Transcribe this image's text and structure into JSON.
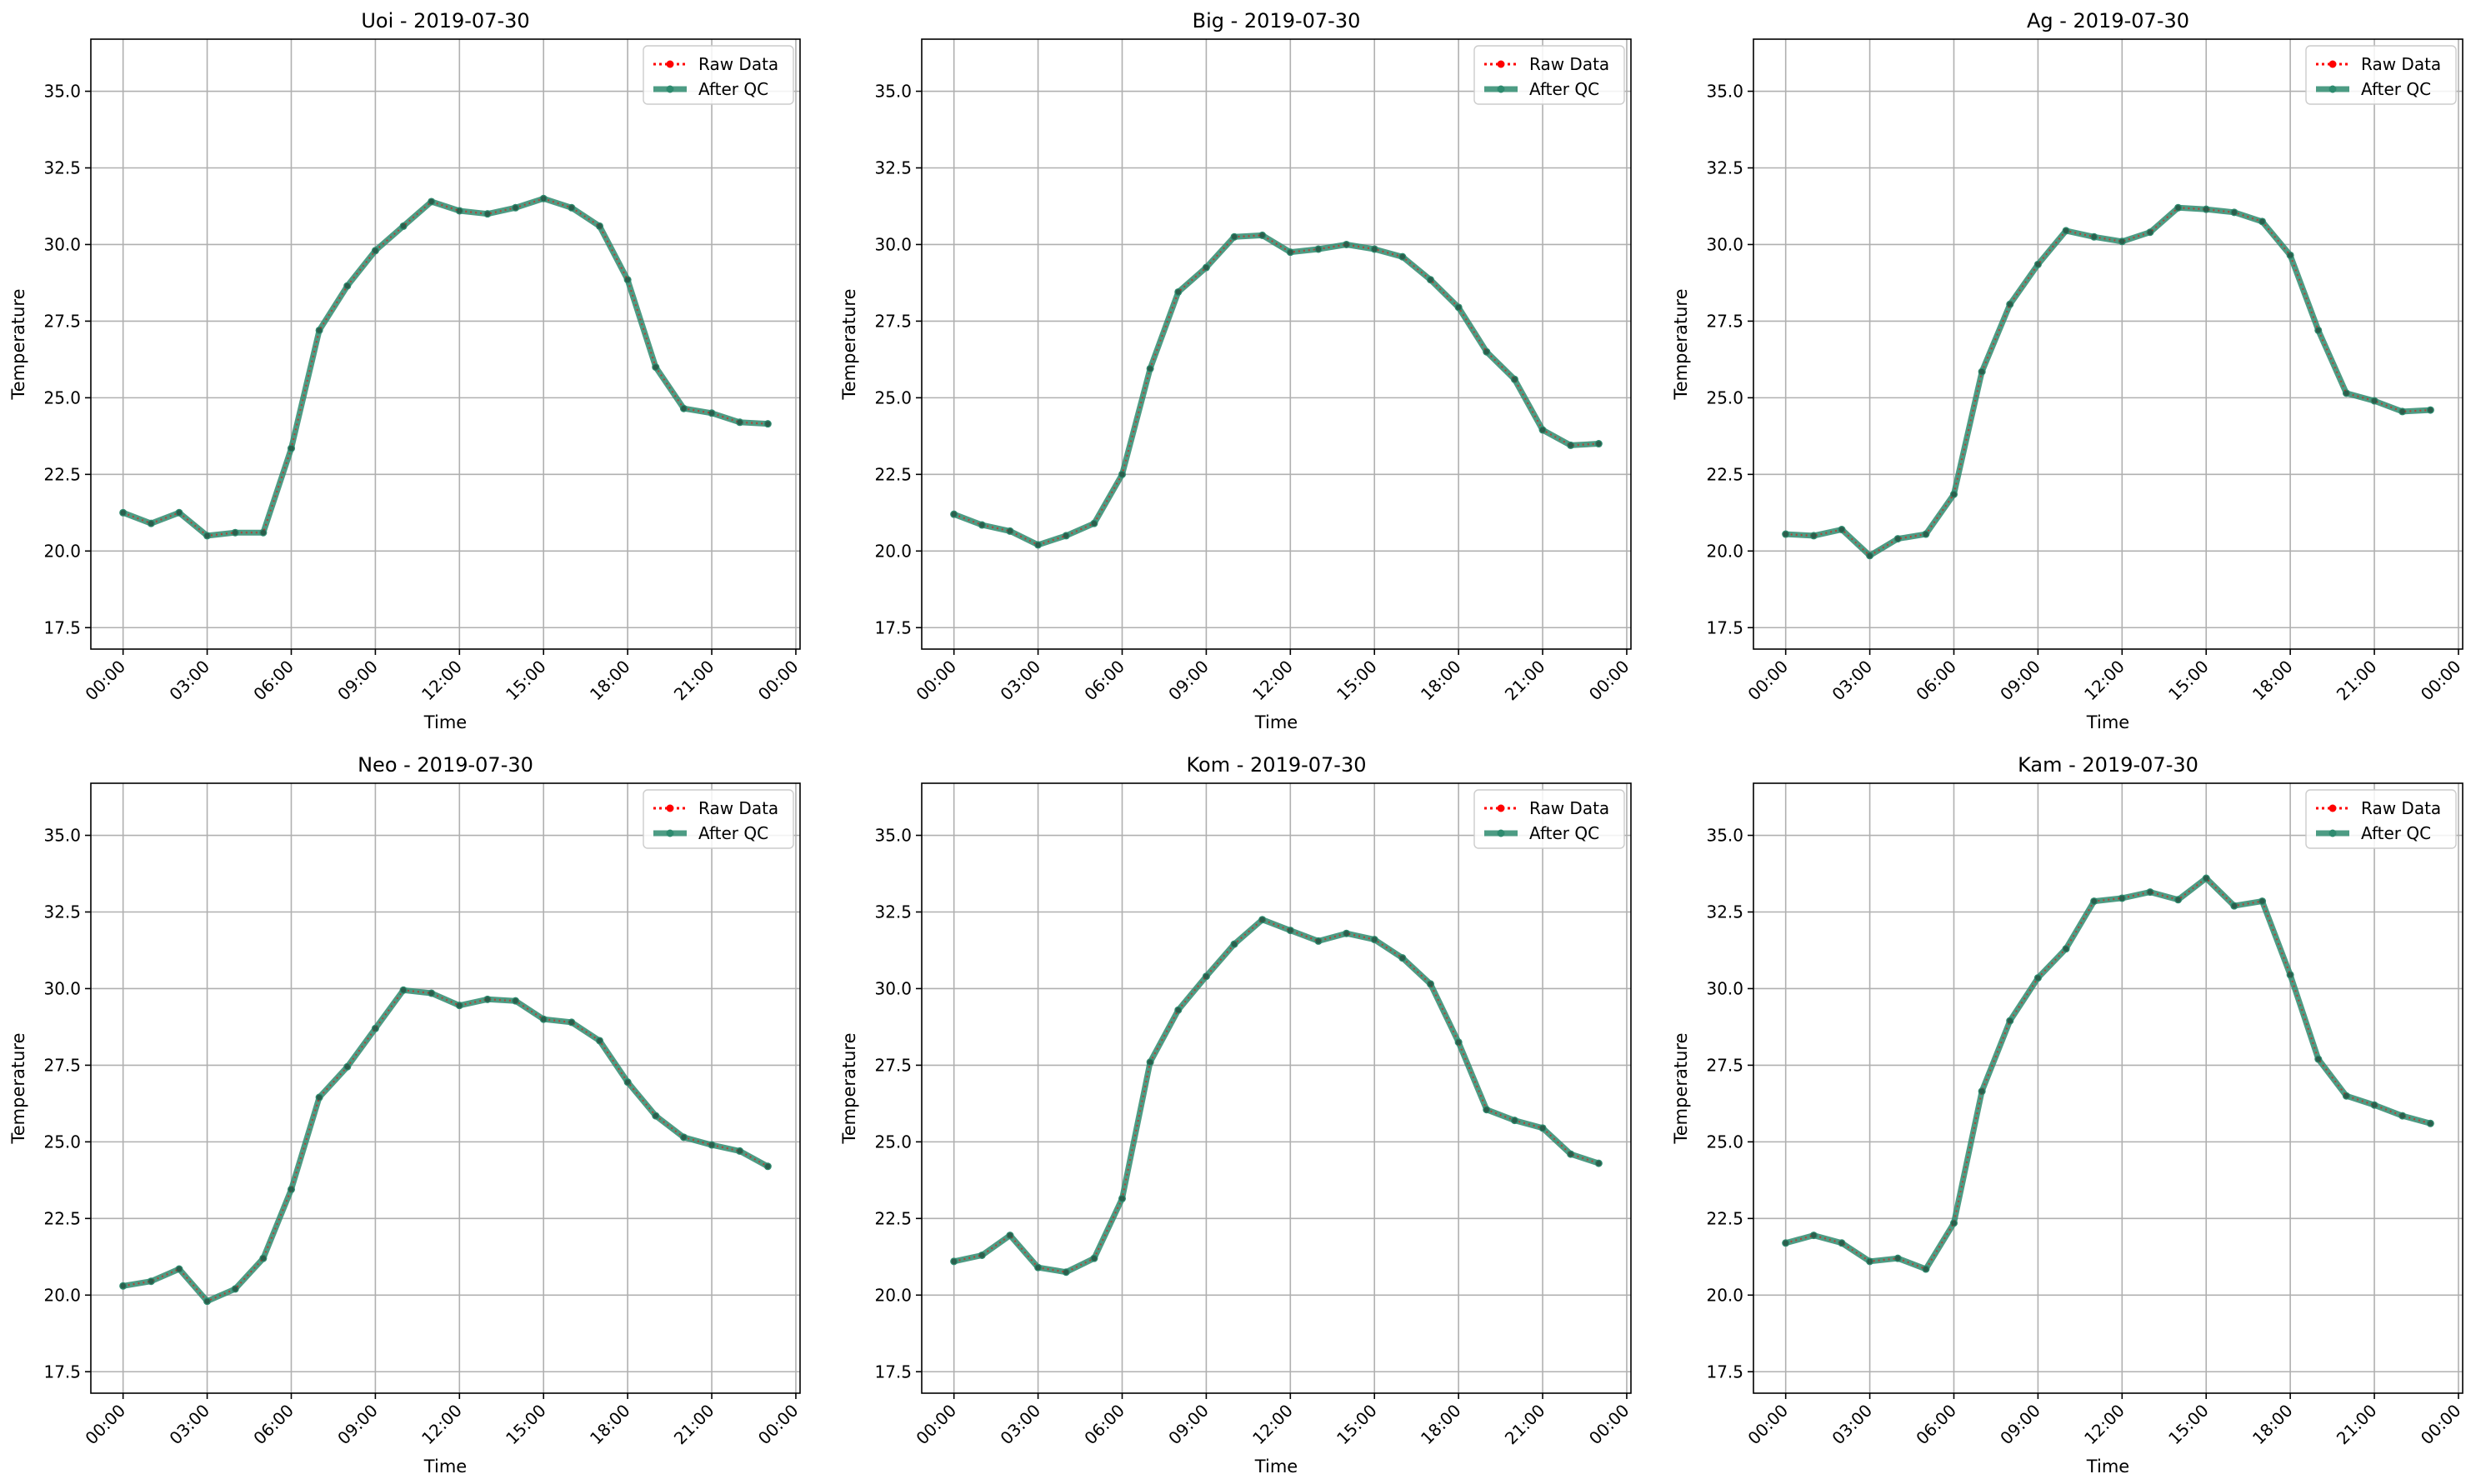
{
  "figure": {
    "style": {
      "raw_color": "#ff0000",
      "qc_color": "#2e8b6f",
      "grid_color": "#b0b0b0",
      "axis_color": "#000000"
    }
  },
  "chart_data": [
    {
      "type": "line",
      "title": "Uoi - 2019-07-30",
      "xlabel": "Time",
      "ylabel": "Temperature",
      "x_ticks": [
        "00:00",
        "03:00",
        "06:00",
        "09:00",
        "12:00",
        "15:00",
        "18:00",
        "21:00",
        "00:00"
      ],
      "x_tick_hours": [
        0,
        3,
        6,
        9,
        12,
        15,
        18,
        21,
        24
      ],
      "xlim": [
        -1.15,
        24.15
      ],
      "y_ticks": [
        "17.5",
        "20.0",
        "22.5",
        "25.0",
        "27.5",
        "30.0",
        "32.5",
        "35.0"
      ],
      "y_tick_values": [
        17.5,
        20.0,
        22.5,
        25.0,
        27.5,
        30.0,
        32.5,
        35.0
      ],
      "ylim": [
        16.8,
        36.7
      ],
      "grid": true,
      "legend_position": "top-right",
      "x_hours": [
        0,
        1,
        2,
        3,
        4,
        5,
        6,
        7,
        8,
        9,
        10,
        11,
        12,
        13,
        14,
        15,
        16,
        17,
        18,
        19,
        20,
        21,
        22,
        23
      ],
      "series": [
        {
          "name": "Raw Data",
          "role": "raw",
          "values": [
            21.25,
            20.9,
            21.25,
            20.5,
            20.6,
            20.6,
            23.35,
            27.2,
            28.65,
            29.8,
            30.6,
            31.4,
            31.1,
            31.0,
            31.2,
            31.5,
            31.2,
            30.6,
            28.85,
            26.0,
            24.65,
            24.5,
            24.2,
            24.15
          ]
        },
        {
          "name": "After QC",
          "role": "qc",
          "values": [
            21.25,
            20.9,
            21.25,
            20.5,
            20.6,
            20.6,
            23.35,
            27.2,
            28.65,
            29.8,
            30.6,
            31.4,
            31.1,
            31.0,
            31.2,
            31.5,
            31.2,
            30.6,
            28.85,
            26.0,
            24.65,
            24.5,
            24.2,
            24.15
          ]
        }
      ]
    },
    {
      "type": "line",
      "title": "Big - 2019-07-30",
      "xlabel": "Time",
      "ylabel": "Temperature",
      "x_ticks": [
        "00:00",
        "03:00",
        "06:00",
        "09:00",
        "12:00",
        "15:00",
        "18:00",
        "21:00",
        "00:00"
      ],
      "x_tick_hours": [
        0,
        3,
        6,
        9,
        12,
        15,
        18,
        21,
        24
      ],
      "xlim": [
        -1.15,
        24.15
      ],
      "y_ticks": [
        "17.5",
        "20.0",
        "22.5",
        "25.0",
        "27.5",
        "30.0",
        "32.5",
        "35.0"
      ],
      "y_tick_values": [
        17.5,
        20.0,
        22.5,
        25.0,
        27.5,
        30.0,
        32.5,
        35.0
      ],
      "ylim": [
        16.8,
        36.7
      ],
      "grid": true,
      "legend_position": "top-right",
      "x_hours": [
        0,
        1,
        2,
        3,
        4,
        5,
        6,
        7,
        8,
        9,
        10,
        11,
        12,
        13,
        14,
        15,
        16,
        17,
        18,
        19,
        20,
        21,
        22,
        23
      ],
      "series": [
        {
          "name": "Raw Data",
          "role": "raw",
          "values": [
            21.2,
            20.85,
            20.65,
            20.2,
            20.5,
            20.9,
            22.5,
            25.95,
            28.45,
            29.25,
            30.25,
            30.3,
            29.75,
            29.85,
            30.0,
            29.85,
            29.6,
            28.85,
            27.95,
            26.5,
            25.6,
            23.95,
            23.45,
            23.5
          ]
        },
        {
          "name": "After QC",
          "role": "qc",
          "values": [
            21.2,
            20.85,
            20.65,
            20.2,
            20.5,
            20.9,
            22.5,
            25.95,
            28.45,
            29.25,
            30.25,
            30.3,
            29.75,
            29.85,
            30.0,
            29.85,
            29.6,
            28.85,
            27.95,
            26.5,
            25.6,
            23.95,
            23.45,
            23.5
          ]
        }
      ]
    },
    {
      "type": "line",
      "title": "Ag - 2019-07-30",
      "xlabel": "Time",
      "ylabel": "Temperature",
      "x_ticks": [
        "00:00",
        "03:00",
        "06:00",
        "09:00",
        "12:00",
        "15:00",
        "18:00",
        "21:00",
        "00:00"
      ],
      "x_tick_hours": [
        0,
        3,
        6,
        9,
        12,
        15,
        18,
        21,
        24
      ],
      "xlim": [
        -1.15,
        24.15
      ],
      "y_ticks": [
        "17.5",
        "20.0",
        "22.5",
        "25.0",
        "27.5",
        "30.0",
        "32.5",
        "35.0"
      ],
      "y_tick_values": [
        17.5,
        20.0,
        22.5,
        25.0,
        27.5,
        30.0,
        32.5,
        35.0
      ],
      "ylim": [
        16.8,
        36.7
      ],
      "grid": true,
      "legend_position": "top-right",
      "x_hours": [
        0,
        1,
        2,
        3,
        4,
        5,
        6,
        7,
        8,
        9,
        10,
        11,
        12,
        13,
        14,
        15,
        16,
        17,
        18,
        19,
        20,
        21,
        22,
        23
      ],
      "series": [
        {
          "name": "Raw Data",
          "role": "raw",
          "values": [
            20.55,
            20.5,
            20.7,
            19.85,
            20.4,
            20.55,
            21.85,
            25.85,
            28.05,
            29.35,
            30.45,
            30.25,
            30.1,
            30.4,
            31.2,
            31.15,
            31.05,
            30.75,
            29.65,
            27.2,
            25.15,
            24.9,
            24.55,
            24.6
          ]
        },
        {
          "name": "After QC",
          "role": "qc",
          "values": [
            20.55,
            20.5,
            20.7,
            19.85,
            20.4,
            20.55,
            21.85,
            25.85,
            28.05,
            29.35,
            30.45,
            30.25,
            30.1,
            30.4,
            31.2,
            31.15,
            31.05,
            30.75,
            29.65,
            27.2,
            25.15,
            24.9,
            24.55,
            24.6
          ]
        }
      ]
    },
    {
      "type": "line",
      "title": "Neo - 2019-07-30",
      "xlabel": "Time",
      "ylabel": "Temperature",
      "x_ticks": [
        "00:00",
        "03:00",
        "06:00",
        "09:00",
        "12:00",
        "15:00",
        "18:00",
        "21:00",
        "00:00"
      ],
      "x_tick_hours": [
        0,
        3,
        6,
        9,
        12,
        15,
        18,
        21,
        24
      ],
      "xlim": [
        -1.15,
        24.15
      ],
      "y_ticks": [
        "17.5",
        "20.0",
        "22.5",
        "25.0",
        "27.5",
        "30.0",
        "32.5",
        "35.0"
      ],
      "y_tick_values": [
        17.5,
        20.0,
        22.5,
        25.0,
        27.5,
        30.0,
        32.5,
        35.0
      ],
      "ylim": [
        16.8,
        36.7
      ],
      "grid": true,
      "legend_position": "top-right",
      "x_hours": [
        0,
        1,
        2,
        3,
        4,
        5,
        6,
        7,
        8,
        9,
        10,
        11,
        12,
        13,
        14,
        15,
        16,
        17,
        18,
        19,
        20,
        21,
        22,
        23
      ],
      "series": [
        {
          "name": "Raw Data",
          "role": "raw",
          "values": [
            20.3,
            20.45,
            20.85,
            19.8,
            20.2,
            21.2,
            23.45,
            26.45,
            27.45,
            28.7,
            29.95,
            29.85,
            29.45,
            29.65,
            29.6,
            29.0,
            28.9,
            28.3,
            26.95,
            25.85,
            25.15,
            24.9,
            24.7,
            24.2
          ]
        },
        {
          "name": "After QC",
          "role": "qc",
          "values": [
            20.3,
            20.45,
            20.85,
            19.8,
            20.2,
            21.2,
            23.45,
            26.45,
            27.45,
            28.7,
            29.95,
            29.85,
            29.45,
            29.65,
            29.6,
            29.0,
            28.9,
            28.3,
            26.95,
            25.85,
            25.15,
            24.9,
            24.7,
            24.2
          ]
        }
      ]
    },
    {
      "type": "line",
      "title": "Kom - 2019-07-30",
      "xlabel": "Time",
      "ylabel": "Temperature",
      "x_ticks": [
        "00:00",
        "03:00",
        "06:00",
        "09:00",
        "12:00",
        "15:00",
        "18:00",
        "21:00",
        "00:00"
      ],
      "x_tick_hours": [
        0,
        3,
        6,
        9,
        12,
        15,
        18,
        21,
        24
      ],
      "xlim": [
        -1.15,
        24.15
      ],
      "y_ticks": [
        "17.5",
        "20.0",
        "22.5",
        "25.0",
        "27.5",
        "30.0",
        "32.5",
        "35.0"
      ],
      "y_tick_values": [
        17.5,
        20.0,
        22.5,
        25.0,
        27.5,
        30.0,
        32.5,
        35.0
      ],
      "ylim": [
        16.8,
        36.7
      ],
      "grid": true,
      "legend_position": "top-right",
      "x_hours": [
        0,
        1,
        2,
        3,
        4,
        5,
        6,
        7,
        8,
        9,
        10,
        11,
        12,
        13,
        14,
        15,
        16,
        17,
        18,
        19,
        20,
        21,
        22,
        23
      ],
      "series": [
        {
          "name": "Raw Data",
          "role": "raw",
          "values": [
            21.1,
            21.3,
            21.95,
            20.9,
            20.75,
            21.2,
            23.15,
            27.6,
            29.3,
            30.4,
            31.45,
            32.25,
            31.9,
            31.55,
            31.8,
            31.6,
            31.0,
            30.15,
            28.25,
            26.05,
            25.7,
            25.45,
            24.6,
            24.3
          ]
        },
        {
          "name": "After QC",
          "role": "qc",
          "values": [
            21.1,
            21.3,
            21.95,
            20.9,
            20.75,
            21.2,
            23.15,
            27.6,
            29.3,
            30.4,
            31.45,
            32.25,
            31.9,
            31.55,
            31.8,
            31.6,
            31.0,
            30.15,
            28.25,
            26.05,
            25.7,
            25.45,
            24.6,
            24.3
          ]
        }
      ]
    },
    {
      "type": "line",
      "title": "Kam - 2019-07-30",
      "xlabel": "Time",
      "ylabel": "Temperature",
      "x_ticks": [
        "00:00",
        "03:00",
        "06:00",
        "09:00",
        "12:00",
        "15:00",
        "18:00",
        "21:00",
        "00:00"
      ],
      "x_tick_hours": [
        0,
        3,
        6,
        9,
        12,
        15,
        18,
        21,
        24
      ],
      "xlim": [
        -1.15,
        24.15
      ],
      "y_ticks": [
        "17.5",
        "20.0",
        "22.5",
        "25.0",
        "27.5",
        "30.0",
        "32.5",
        "35.0"
      ],
      "y_tick_values": [
        17.5,
        20.0,
        22.5,
        25.0,
        27.5,
        30.0,
        32.5,
        35.0
      ],
      "ylim": [
        16.8,
        36.7
      ],
      "grid": true,
      "legend_position": "top-right",
      "x_hours": [
        0,
        1,
        2,
        3,
        4,
        5,
        6,
        7,
        8,
        9,
        10,
        11,
        12,
        13,
        14,
        15,
        16,
        17,
        18,
        19,
        20,
        21,
        22,
        23
      ],
      "series": [
        {
          "name": "Raw Data",
          "role": "raw",
          "values": [
            21.7,
            21.95,
            21.7,
            21.1,
            21.2,
            20.85,
            22.35,
            26.65,
            28.95,
            30.35,
            31.3,
            32.85,
            32.95,
            33.15,
            32.9,
            33.6,
            32.7,
            32.85,
            30.45,
            27.7,
            26.5,
            26.2,
            25.85,
            25.6
          ]
        },
        {
          "name": "After QC",
          "role": "qc",
          "values": [
            21.7,
            21.95,
            21.7,
            21.1,
            21.2,
            20.85,
            22.35,
            26.65,
            28.95,
            30.35,
            31.3,
            32.85,
            32.95,
            33.15,
            32.9,
            33.6,
            32.7,
            32.85,
            30.45,
            27.7,
            26.5,
            26.2,
            25.85,
            25.6
          ]
        }
      ]
    }
  ]
}
